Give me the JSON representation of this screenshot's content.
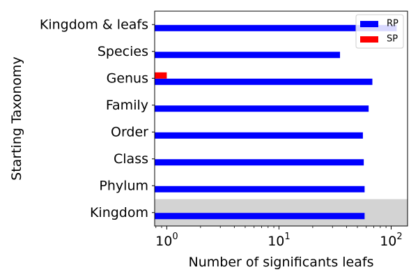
{
  "chart_data": {
    "type": "bar",
    "orientation": "horizontal",
    "xscale": "log",
    "xlabel": "Number of significants leafs",
    "ylabel": "Starting Taxonomy",
    "categories": [
      "Kingdom & leafs",
      "Species",
      "Genus",
      "Family",
      "Order",
      "Class",
      "Phylum",
      "Kingdom"
    ],
    "series": [
      {
        "name": "RP",
        "color": "#0000ff",
        "values": [
          112,
          35,
          68,
          63,
          56,
          57,
          58,
          58
        ]
      },
      {
        "name": "SP",
        "color": "#ff0000",
        "values": [
          null,
          null,
          1,
          null,
          null,
          null,
          null,
          null
        ]
      }
    ],
    "xlim": [
      0.78,
      140
    ],
    "x_ticks": [
      {
        "value": 1,
        "base": "10",
        "exp": "0"
      },
      {
        "value": 10,
        "base": "10",
        "exp": "1"
      },
      {
        "value": 100,
        "base": "10",
        "exp": "2"
      }
    ],
    "highlight_category": "Kingdom",
    "highlight_color": "#d3d3d3",
    "legend": {
      "position": "top-right",
      "entries": [
        "RP",
        "SP"
      ]
    },
    "grid": false
  }
}
